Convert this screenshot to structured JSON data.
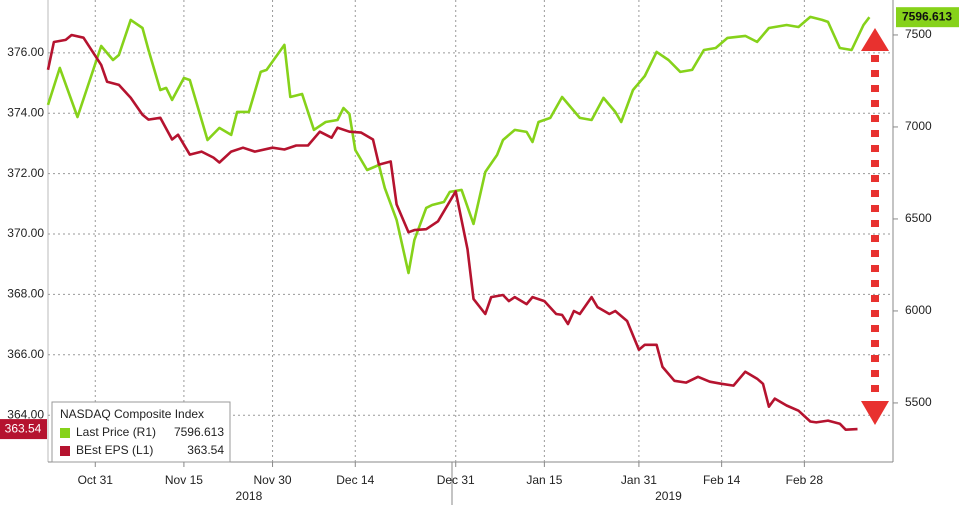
{
  "chart_data": {
    "type": "line",
    "legend_title": "NASDAQ Composite Index",
    "xlim": [
      "2018-10-23",
      "2019-03-15"
    ],
    "xticks": [
      {
        "value": "2018-10-31",
        "label": "Oct 31"
      },
      {
        "value": "2018-11-15",
        "label": "Nov 15"
      },
      {
        "value": "2018-11-30",
        "label": "Nov 30"
      },
      {
        "value": "2018-12-14",
        "label": "Dec 14"
      },
      {
        "value": "2018-12-31",
        "label": "Dec 31"
      },
      {
        "value": "2019-01-15",
        "label": "Jan 15"
      },
      {
        "value": "2019-01-31",
        "label": "Jan 31"
      },
      {
        "value": "2019-02-14",
        "label": "Feb 14"
      },
      {
        "value": "2019-02-28",
        "label": "Feb 28"
      }
    ],
    "x_year_labels": [
      {
        "value": "2018-11-26",
        "label": "2018"
      },
      {
        "value": "2019-02-05",
        "label": "2019"
      }
    ],
    "ylim": [
      362.45,
      377.75
    ],
    "yticks": [
      {
        "value": 364,
        "label": "364.00"
      },
      {
        "value": 366,
        "label": "366.00"
      },
      {
        "value": 368,
        "label": "368.00"
      },
      {
        "value": 370,
        "label": "370.00"
      },
      {
        "value": 372,
        "label": "372.00"
      },
      {
        "value": 374,
        "label": "374.00"
      },
      {
        "value": 376,
        "label": "376.00"
      }
    ],
    "y2lim": [
      5179,
      7690
    ],
    "y2ticks": [
      5500,
      6000,
      6500,
      7000,
      7500
    ],
    "grid": true,
    "series": [
      {
        "name": "Last Price (R1)",
        "color": "#86d21a",
        "axis": "y2",
        "x": [
          "2018-10-23",
          "2018-10-25",
          "2018-10-28",
          "2018-11-01",
          "2018-11-03",
          "2018-11-04",
          "2018-11-06",
          "2018-11-08",
          "2018-11-09",
          "2018-11-11",
          "2018-11-12",
          "2018-11-13",
          "2018-11-15",
          "2018-11-16",
          "2018-11-18",
          "2018-11-19",
          "2018-11-21",
          "2018-11-23",
          "2018-11-24",
          "2018-11-26",
          "2018-11-28",
          "2018-11-29",
          "2018-12-02",
          "2018-12-03",
          "2018-12-05",
          "2018-12-07",
          "2018-12-09",
          "2018-12-11",
          "2018-12-12",
          "2018-12-13",
          "2018-12-14",
          "2018-12-16",
          "2018-12-18",
          "2018-12-19",
          "2018-12-21",
          "2018-12-23",
          "2018-12-24",
          "2018-12-26",
          "2018-12-27",
          "2018-12-29",
          "2018-12-30",
          "2019-01-01",
          "2019-01-03",
          "2019-01-05",
          "2019-01-07",
          "2019-01-08",
          "2019-01-10",
          "2019-01-12",
          "2019-01-13",
          "2019-01-14",
          "2019-01-16",
          "2019-01-18",
          "2019-01-21",
          "2019-01-23",
          "2019-01-25",
          "2019-01-27",
          "2019-01-28",
          "2019-01-30",
          "2019-02-01",
          "2019-02-03",
          "2019-02-05",
          "2019-02-07",
          "2019-02-09",
          "2019-02-11",
          "2019-02-13",
          "2019-02-15",
          "2019-02-18",
          "2019-02-20",
          "2019-02-22",
          "2019-02-25",
          "2019-02-27",
          "2019-03-01",
          "2019-03-03",
          "2019-03-04",
          "2019-03-06",
          "2019-03-08",
          "2019-03-10",
          "2019-03-11"
        ],
        "values": [
          7120,
          7321,
          7054,
          7440,
          7364,
          7391,
          7582,
          7538,
          7418,
          7201,
          7212,
          7147,
          7266,
          7255,
          7038,
          6929,
          6995,
          6957,
          7082,
          7082,
          7299,
          7310,
          7446,
          7163,
          7179,
          6984,
          7027,
          7038,
          7103,
          7071,
          6875,
          6766,
          6793,
          6668,
          6495,
          6206,
          6386,
          6560,
          6576,
          6592,
          6647,
          6658,
          6473,
          6755,
          6848,
          6929,
          6984,
          6973,
          6918,
          7027,
          7049,
          7163,
          7049,
          7038,
          7158,
          7082,
          7027,
          7201,
          7277,
          7408,
          7364,
          7299,
          7310,
          7418,
          7429,
          7484,
          7495,
          7462,
          7538,
          7554,
          7543,
          7598,
          7582,
          7571,
          7429,
          7418,
          7554,
          7596.613
        ]
      },
      {
        "name": "BEst EPS (L1)",
        "color": "#b5132f",
        "axis": "y",
        "x": [
          "2018-10-23",
          "2018-10-24",
          "2018-10-26",
          "2018-10-27",
          "2018-10-29",
          "2018-11-01",
          "2018-11-02",
          "2018-11-04",
          "2018-11-06",
          "2018-11-08",
          "2018-11-09",
          "2018-11-11",
          "2018-11-13",
          "2018-11-14",
          "2018-11-16",
          "2018-11-18",
          "2018-11-20",
          "2018-11-21",
          "2018-11-23",
          "2018-11-25",
          "2018-11-27",
          "2018-11-30",
          "2018-12-02",
          "2018-12-04",
          "2018-12-06",
          "2018-12-08",
          "2018-12-10",
          "2018-12-11",
          "2018-12-13",
          "2018-12-15",
          "2018-12-17",
          "2018-12-18",
          "2018-12-20",
          "2018-12-21",
          "2018-12-23",
          "2018-12-24",
          "2018-12-26",
          "2018-12-28",
          "2018-12-31",
          "2019-01-02",
          "2019-01-03",
          "2019-01-05",
          "2019-01-06",
          "2019-01-08",
          "2019-01-09",
          "2019-01-10",
          "2019-01-12",
          "2019-01-13",
          "2019-01-15",
          "2019-01-17",
          "2019-01-18",
          "2019-01-19",
          "2019-01-20",
          "2019-01-21",
          "2019-01-23",
          "2019-01-24",
          "2019-01-26",
          "2019-01-27",
          "2019-01-29",
          "2019-01-31",
          "2019-02-01",
          "2019-02-03",
          "2019-02-04",
          "2019-02-06",
          "2019-02-08",
          "2019-02-10",
          "2019-02-12",
          "2019-02-14",
          "2019-02-16",
          "2019-02-18",
          "2019-02-20",
          "2019-02-21",
          "2019-02-22",
          "2019-02-23",
          "2019-02-25",
          "2019-02-27",
          "2019-03-01",
          "2019-03-02",
          "2019-03-04",
          "2019-03-06",
          "2019-03-07",
          "2019-03-09"
        ],
        "values": [
          375.44,
          376.36,
          376.43,
          376.59,
          376.5,
          375.6,
          375.04,
          374.94,
          374.51,
          373.95,
          373.79,
          373.85,
          373.13,
          373.29,
          372.63,
          372.73,
          372.53,
          372.37,
          372.73,
          372.86,
          372.73,
          372.86,
          372.8,
          372.93,
          372.93,
          373.39,
          373.19,
          373.52,
          373.39,
          373.36,
          373.13,
          372.3,
          372.4,
          370.98,
          370.06,
          370.13,
          370.16,
          370.42,
          371.41,
          369.5,
          367.85,
          367.35,
          367.91,
          367.98,
          367.78,
          367.91,
          367.68,
          367.91,
          367.78,
          367.35,
          367.32,
          367.02,
          367.45,
          367.35,
          367.91,
          367.58,
          367.35,
          367.45,
          367.12,
          366.17,
          366.33,
          366.33,
          365.6,
          365.14,
          365.08,
          365.27,
          365.11,
          365.04,
          364.98,
          365.44,
          365.21,
          365.04,
          364.28,
          364.55,
          364.32,
          364.15,
          363.79,
          363.76,
          363.82,
          363.72,
          363.52,
          363.54
        ]
      }
    ]
  }
}
